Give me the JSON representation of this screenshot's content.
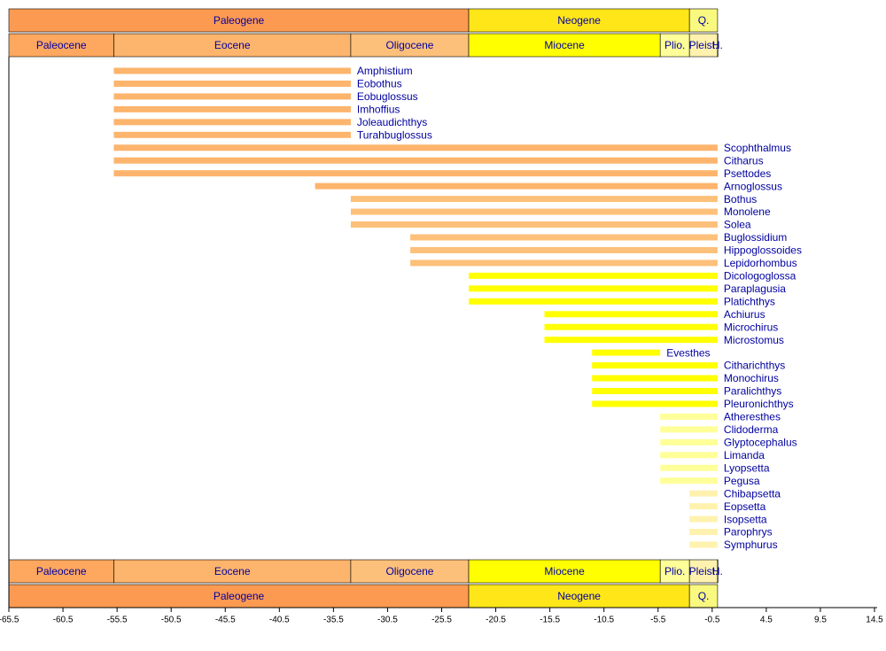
{
  "chart_data": {
    "type": "timeline",
    "xlim": [
      -65.5,
      14.5
    ],
    "xticks": [
      -65.5,
      -60.5,
      -55.5,
      -50.5,
      -45.5,
      -40.5,
      -35.5,
      -30.5,
      -25.5,
      -20.5,
      -15.5,
      -10.5,
      -5.5,
      -0.5,
      4.5,
      9.5,
      14.5
    ],
    "periods": [
      {
        "name": "Paleogene",
        "start": -65.5,
        "end": -23,
        "color": "#fd9a52"
      },
      {
        "name": "Neogene",
        "start": -23,
        "end": -2.6,
        "color": "#ffe619"
      },
      {
        "name": "Q.",
        "start": -2.6,
        "end": 0,
        "color": "#f9f97f"
      }
    ],
    "epochs": [
      {
        "name": "Paleocene",
        "start": -65.5,
        "end": -55.8,
        "color": "#fda75f"
      },
      {
        "name": "Eocene",
        "start": -55.8,
        "end": -33.9,
        "color": "#fdb46c"
      },
      {
        "name": "Oligocene",
        "start": -33.9,
        "end": -23,
        "color": "#fdc07a"
      },
      {
        "name": "Miocene",
        "start": -23,
        "end": -5.3,
        "color": "#ffff00"
      },
      {
        "name": "Plio.",
        "start": -5.3,
        "end": -2.6,
        "color": "#ffff99"
      },
      {
        "name": "Pleist.",
        "start": -2.6,
        "end": -0.01,
        "color": "#fff2ae"
      },
      {
        "name": "H.",
        "start": -0.01,
        "end": 0,
        "color": "#fef2e0"
      }
    ],
    "taxa": [
      {
        "name": "Amphistium",
        "start": -55.8,
        "end": -33.9,
        "color": "#fdb46c"
      },
      {
        "name": "Eobothus",
        "start": -55.8,
        "end": -33.9,
        "color": "#fdb46c"
      },
      {
        "name": "Eobuglossus",
        "start": -55.8,
        "end": -33.9,
        "color": "#fdb46c"
      },
      {
        "name": "Imhoffius",
        "start": -55.8,
        "end": -33.9,
        "color": "#fdb46c"
      },
      {
        "name": "Joleaudichthys",
        "start": -55.8,
        "end": -33.9,
        "color": "#fdb46c"
      },
      {
        "name": "Turahbuglossus",
        "start": -55.8,
        "end": -33.9,
        "color": "#fdb46c"
      },
      {
        "name": "Scophthalmus",
        "start": -55.8,
        "end": 0,
        "color": "#fdb46c"
      },
      {
        "name": "Citharus",
        "start": -55.8,
        "end": 0,
        "color": "#fdb46c"
      },
      {
        "name": "Psettodes",
        "start": -55.8,
        "end": 0,
        "color": "#fdb46c"
      },
      {
        "name": "Arnoglossus",
        "start": -37.2,
        "end": 0,
        "color": "#fdb46c"
      },
      {
        "name": "Bothus",
        "start": -33.9,
        "end": 0,
        "color": "#fdc07a"
      },
      {
        "name": "Monolene",
        "start": -33.9,
        "end": 0,
        "color": "#fdc07a"
      },
      {
        "name": "Solea",
        "start": -33.9,
        "end": 0,
        "color": "#fdc07a"
      },
      {
        "name": "Buglossidium",
        "start": -28.4,
        "end": 0,
        "color": "#fdc07a"
      },
      {
        "name": "Hippoglossoides",
        "start": -28.4,
        "end": 0,
        "color": "#fdc07a"
      },
      {
        "name": "Lepidorhombus",
        "start": -28.4,
        "end": 0,
        "color": "#fdc07a"
      },
      {
        "name": "Dicologoglossa",
        "start": -23,
        "end": 0,
        "color": "#ffff00"
      },
      {
        "name": "Paraplagusia",
        "start": -23,
        "end": 0,
        "color": "#ffff00"
      },
      {
        "name": "Platichthys",
        "start": -23,
        "end": 0,
        "color": "#ffff00"
      },
      {
        "name": "Achiurus",
        "start": -16,
        "end": 0,
        "color": "#ffff00"
      },
      {
        "name": "Microchirus",
        "start": -16,
        "end": 0,
        "color": "#ffff00"
      },
      {
        "name": "Microstomus",
        "start": -16,
        "end": 0,
        "color": "#ffff00"
      },
      {
        "name": "Evesthes",
        "start": -11.6,
        "end": -5.3,
        "color": "#ffff00"
      },
      {
        "name": "Citharichthys",
        "start": -11.6,
        "end": 0,
        "color": "#ffff00"
      },
      {
        "name": "Monochirus",
        "start": -11.6,
        "end": 0,
        "color": "#ffff00"
      },
      {
        "name": "Paralichthys",
        "start": -11.6,
        "end": 0,
        "color": "#ffff00"
      },
      {
        "name": "Pleuronichthys",
        "start": -11.6,
        "end": 0,
        "color": "#ffff00"
      },
      {
        "name": "Atheresthes",
        "start": -5.3,
        "end": 0,
        "color": "#ffff99"
      },
      {
        "name": "Clidoderma",
        "start": -5.3,
        "end": 0,
        "color": "#ffff99"
      },
      {
        "name": "Glyptocephalus",
        "start": -5.3,
        "end": 0,
        "color": "#ffff99"
      },
      {
        "name": "Limanda",
        "start": -5.3,
        "end": 0,
        "color": "#ffff99"
      },
      {
        "name": "Lyopsetta",
        "start": -5.3,
        "end": 0,
        "color": "#ffff99"
      },
      {
        "name": "Pegusa",
        "start": -5.3,
        "end": 0,
        "color": "#ffff99"
      },
      {
        "name": "Chibapsetta",
        "start": -2.6,
        "end": 0,
        "color": "#fff2ae"
      },
      {
        "name": "Eopsetta",
        "start": -2.6,
        "end": 0,
        "color": "#fff2ae"
      },
      {
        "name": "Isopsetta",
        "start": -2.6,
        "end": 0,
        "color": "#fff2ae"
      },
      {
        "name": "Parophrys",
        "start": -2.6,
        "end": 0,
        "color": "#fff2ae"
      },
      {
        "name": "Symphurus",
        "start": -2.6,
        "end": 0,
        "color": "#fff2ae"
      }
    ]
  }
}
